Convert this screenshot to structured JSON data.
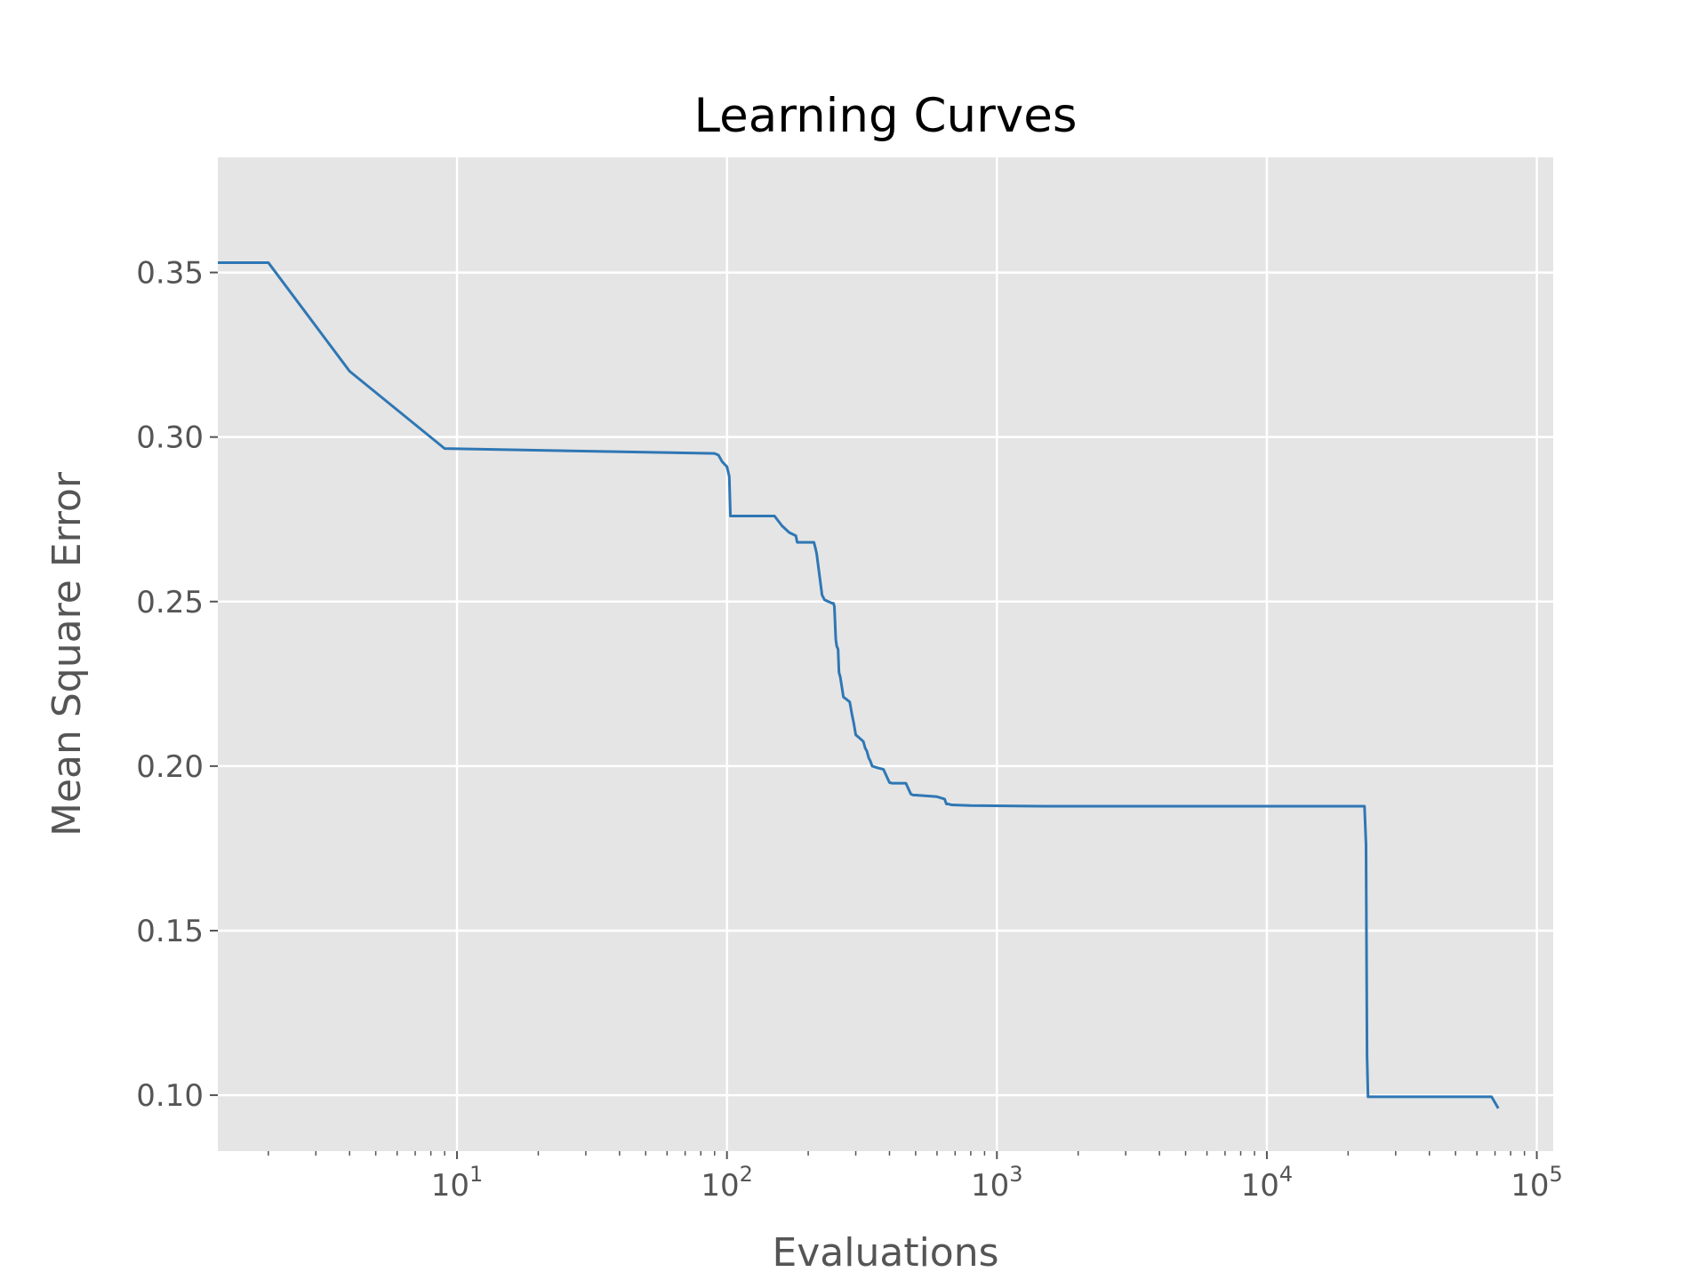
{
  "chart_data": {
    "type": "line",
    "title": "Learning Curves",
    "xlabel": "Evaluations",
    "ylabel": "Mean Square Error",
    "xscale": "log",
    "xlim": [
      1.3,
      115000
    ],
    "ylim": [
      0.083,
      0.385
    ],
    "grid": true,
    "background": "#e5e5e5",
    "line_color": "#2f77b4",
    "yticks": [
      {
        "value": 0.1,
        "label": "0.10"
      },
      {
        "value": 0.15,
        "label": "0.15"
      },
      {
        "value": 0.2,
        "label": "0.20"
      },
      {
        "value": 0.25,
        "label": "0.25"
      },
      {
        "value": 0.3,
        "label": "0.30"
      },
      {
        "value": 0.35,
        "label": "0.35"
      }
    ],
    "xticks": [
      {
        "value": 10,
        "base": "10",
        "exp": "1"
      },
      {
        "value": 100,
        "base": "10",
        "exp": "2"
      },
      {
        "value": 1000,
        "base": "10",
        "exp": "3"
      },
      {
        "value": 10000,
        "base": "10",
        "exp": "4"
      },
      {
        "value": 100000,
        "base": "10",
        "exp": "5"
      }
    ],
    "series": [
      {
        "x": [
          1.3,
          2,
          4,
          9,
          90,
          93,
          96,
          100,
          102,
          103,
          105,
          150,
          160,
          170,
          180,
          182,
          210,
          213,
          215,
          225,
          230,
          245,
          248,
          250,
          253,
          255,
          258,
          260,
          263,
          270,
          275,
          280,
          285,
          290,
          295,
          300,
          310,
          320,
          325,
          330,
          335,
          340,
          345,
          360,
          380,
          400,
          410,
          440,
          460,
          480,
          490,
          500,
          520,
          600,
          640,
          650,
          660,
          680,
          800,
          1500,
          5000,
          20000,
          23000,
          23300,
          23500,
          23700,
          23800,
          24000,
          30000,
          68000,
          72000
        ],
        "y": [
          0.353,
          0.353,
          0.32,
          0.2965,
          0.295,
          0.2945,
          0.2925,
          0.291,
          0.288,
          0.276,
          0.276,
          0.276,
          0.273,
          0.271,
          0.27,
          0.268,
          0.268,
          0.266,
          0.2645,
          0.252,
          0.2505,
          0.2495,
          0.2495,
          0.2485,
          0.2385,
          0.2365,
          0.2355,
          0.2285,
          0.227,
          0.221,
          0.2205,
          0.22,
          0.2195,
          0.216,
          0.213,
          0.2095,
          0.2085,
          0.2075,
          0.2055,
          0.2045,
          0.2025,
          0.2015,
          0.2,
          0.1995,
          0.199,
          0.195,
          0.1948,
          0.1948,
          0.1948,
          0.1915,
          0.1912,
          0.1912,
          0.1911,
          0.1907,
          0.19,
          0.1885,
          0.1885,
          0.1882,
          0.188,
          0.1878,
          0.1878,
          0.1878,
          0.1878,
          0.176,
          0.112,
          0.0995,
          0.0995,
          0.0995,
          0.0995,
          0.0995,
          0.096
        ]
      }
    ]
  }
}
